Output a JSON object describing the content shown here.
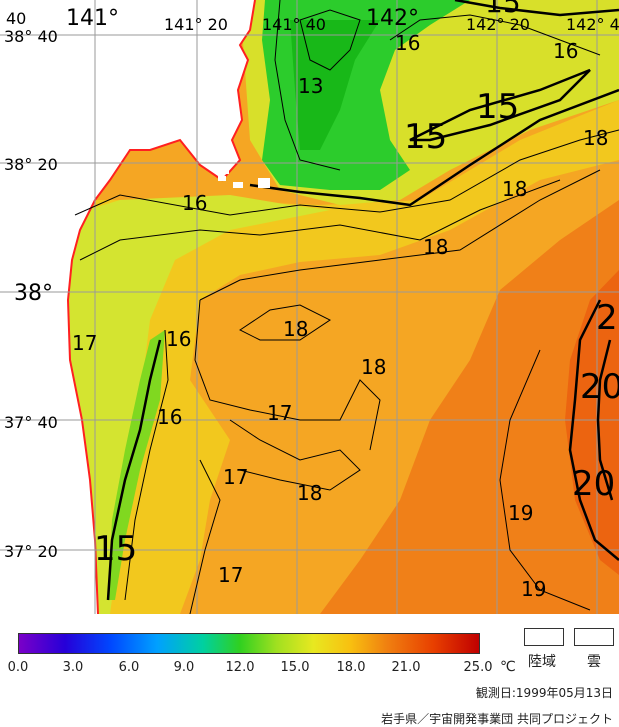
{
  "map": {
    "colors": {
      "land": "#ffffff",
      "coastline": "#ff2020",
      "grid": "#9a9a9a",
      "contour": "#000000",
      "cold": "#22c822",
      "cool": "#c8e830",
      "mild": "#f0d020",
      "warm": "#f0a020",
      "hot": "#f07010"
    },
    "graticule": {
      "lon_labels": [
        "141°",
        "141° 20",
        "141° 40",
        "142°",
        "142° 20",
        "142° 4"
      ],
      "lat_labels": [
        "38° 40",
        "38° 20",
        "38°",
        "37° 40",
        "37° 20"
      ],
      "corner_label": "40"
    },
    "contour_labels": [
      "15",
      "16",
      "13",
      "15",
      "15",
      "16",
      "16",
      "18",
      "18",
      "18",
      "17",
      "16",
      "18",
      "18",
      "20",
      "17",
      "16",
      "17",
      "18",
      "20",
      "19",
      "15",
      "17",
      "19",
      "20",
      "2"
    ]
  },
  "legend": {
    "tick_labels": [
      "0.0",
      "3.0",
      "6.0",
      "9.0",
      "12.0",
      "15.0",
      "18.0",
      "21.0",
      "25.0"
    ],
    "unit": "℃",
    "land_label": "陸域",
    "cloud_label": "雲"
  },
  "footer": {
    "observation_date": "観測日:1999年05月13日",
    "credit": "岩手県／宇宙開発事業団  共同プロジェクト"
  }
}
